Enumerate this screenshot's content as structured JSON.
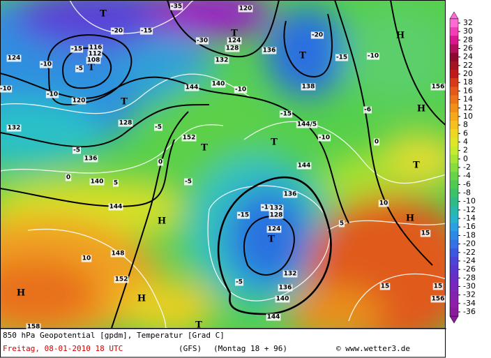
{
  "map": {
    "labels": [
      "T",
      "T",
      "T",
      "T",
      "T",
      "T",
      "T",
      "T",
      "T",
      "T",
      "H",
      "H",
      "H",
      "H",
      "H",
      "H",
      "-10",
      "-15",
      "-15",
      "-20",
      "-20",
      "-15",
      "-10",
      "-10",
      "-10",
      "-5",
      "-5",
      "-5",
      "-5",
      "-10",
      "-15",
      "-5",
      "-10",
      "-15",
      "-10",
      "-6",
      "0",
      "0",
      "0",
      "5",
      "5",
      "10",
      "10",
      "15",
      "15",
      "15",
      "144",
      "144/5",
      "144",
      "144",
      "144",
      "152",
      "152",
      "148",
      "140",
      "136",
      "132",
      "128",
      "124",
      "120",
      "116",
      "112",
      "108",
      "120",
      "124",
      "128",
      "132",
      "136",
      "138",
      "140",
      "136",
      "132",
      "128",
      "124",
      "132",
      "136",
      "140",
      "156",
      "158",
      "156",
      "-35",
      "-30"
    ]
  },
  "colorbar": {
    "levels": [
      32,
      30,
      28,
      26,
      24,
      22,
      20,
      18,
      16,
      14,
      12,
      10,
      8,
      6,
      4,
      2,
      0,
      -2,
      -4,
      -6,
      -8,
      -10,
      -12,
      -14,
      -16,
      -18,
      -20,
      -22,
      -24,
      -26,
      -28,
      -30,
      -32,
      -34,
      -36
    ],
    "colors": [
      "#ff6ad5",
      "#f23cb8",
      "#d9178f",
      "#b30f5c",
      "#8c0a2e",
      "#a31423",
      "#c01b1b",
      "#d63a1a",
      "#e45819",
      "#ec7418",
      "#f28f17",
      "#f5a81a",
      "#f4c11f",
      "#eed822",
      "#dfe628",
      "#c6ea2e",
      "#a7e535",
      "#86dd3c",
      "#66d446",
      "#4fcb52",
      "#3cc267",
      "#30bb86",
      "#29b9a9",
      "#27b3cb",
      "#2aa0e2",
      "#2f87e6",
      "#3470e6",
      "#3c58e0",
      "#4a44d8",
      "#5a36cf",
      "#6a2dc6",
      "#7a27bd",
      "#8622b2",
      "#8f1fa8",
      "#8a1c9c"
    ]
  },
  "footer": {
    "title": "850 hPa Geopotential [gpdm], Temperatur [Grad C]",
    "date": "Freitag, 08-01-2010  18 UTC",
    "model": "(GFS)",
    "run": "(Montag 18 + 96)",
    "credit": "© www.wetter3.de"
  }
}
